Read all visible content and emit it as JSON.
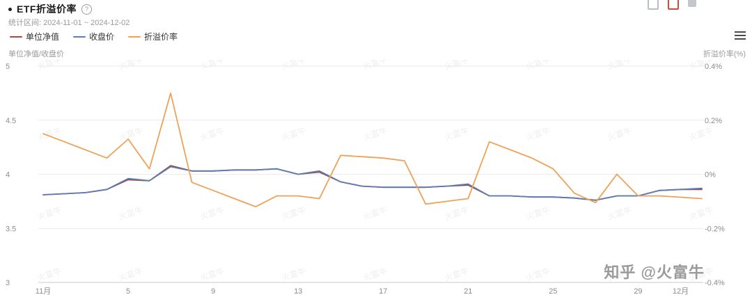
{
  "header": {
    "title": "ETF折溢价率",
    "help_glyph": "?",
    "subtitle": "统计区间: 2024-11-01 ~ 2024-12-02"
  },
  "legend": {
    "items": [
      {
        "label": "单位净值",
        "color": "#9c4a42"
      },
      {
        "label": "收盘价",
        "color": "#5b7db1"
      },
      {
        "label": "折溢价率",
        "color": "#efa157"
      }
    ]
  },
  "watermark": {
    "tile_text": "火富牛",
    "signature": "知乎 @火富牛"
  },
  "chart_data": {
    "type": "line",
    "title": "ETF折溢价率",
    "period": "2024-11-01 ~ 2024-12-02",
    "x": [
      "11-01",
      "11-02",
      "11-03",
      "11-04",
      "11-05",
      "11-06",
      "11-07",
      "11-08",
      "11-09",
      "11-10",
      "11-11",
      "11-12",
      "11-13",
      "11-14",
      "11-15",
      "11-16",
      "11-17",
      "11-18",
      "11-19",
      "11-20",
      "11-21",
      "11-22",
      "11-23",
      "11-24",
      "11-25",
      "11-26",
      "11-27",
      "11-28",
      "11-29",
      "11-30",
      "12-01",
      "12-02"
    ],
    "x_tick_labels": [
      {
        "index": 0,
        "label": "11月"
      },
      {
        "index": 4,
        "label": "5"
      },
      {
        "index": 8,
        "label": "9"
      },
      {
        "index": 12,
        "label": "13"
      },
      {
        "index": 16,
        "label": "17"
      },
      {
        "index": 20,
        "label": "21"
      },
      {
        "index": 24,
        "label": "25"
      },
      {
        "index": 28,
        "label": "29"
      },
      {
        "index": 30,
        "label": "12月"
      }
    ],
    "left_axis": {
      "label": "单位净值/收盘价",
      "range": [
        3,
        5
      ],
      "ticks": [
        5,
        4.5,
        4,
        3.5,
        3
      ]
    },
    "right_axis": {
      "label": "折溢价率(%)",
      "range": [
        -0.4,
        0.4
      ],
      "ticks": [
        0.4,
        0.2,
        0,
        -0.2,
        -0.4
      ],
      "unit": "%"
    },
    "grid": true,
    "legend_position": "top-left",
    "series": [
      {
        "name": "单位净值",
        "axis": "left",
        "color": "#9c4a42",
        "values": [
          3.81,
          3.82,
          3.83,
          3.86,
          3.95,
          3.94,
          4.08,
          4.03,
          4.03,
          4.04,
          4.04,
          4.05,
          4.0,
          4.02,
          3.93,
          3.89,
          3.88,
          3.88,
          3.88,
          3.89,
          3.9,
          3.8,
          3.8,
          3.79,
          3.79,
          3.78,
          3.76,
          3.8,
          3.8,
          3.85,
          3.86,
          3.86
        ]
      },
      {
        "name": "收盘价",
        "axis": "left",
        "color": "#5b7db1",
        "values": [
          3.81,
          3.82,
          3.83,
          3.86,
          3.96,
          3.94,
          4.07,
          4.03,
          4.03,
          4.04,
          4.04,
          4.05,
          4.0,
          4.03,
          3.93,
          3.89,
          3.88,
          3.88,
          3.88,
          3.89,
          3.91,
          3.8,
          3.8,
          3.79,
          3.79,
          3.78,
          3.76,
          3.8,
          3.8,
          3.85,
          3.86,
          3.87
        ]
      },
      {
        "name": "折溢价率",
        "axis": "right",
        "color": "#efa157",
        "values": [
          0.15,
          0.12,
          0.09,
          0.06,
          0.13,
          0.02,
          0.3,
          -0.03,
          -0.06,
          -0.09,
          -0.12,
          -0.08,
          -0.08,
          -0.09,
          0.07,
          0.065,
          0.06,
          0.05,
          -0.11,
          -0.1,
          -0.09,
          0.12,
          0.09,
          0.06,
          0.02,
          -0.07,
          -0.105,
          0.0,
          -0.08,
          -0.08,
          -0.085,
          -0.09
        ]
      }
    ]
  }
}
